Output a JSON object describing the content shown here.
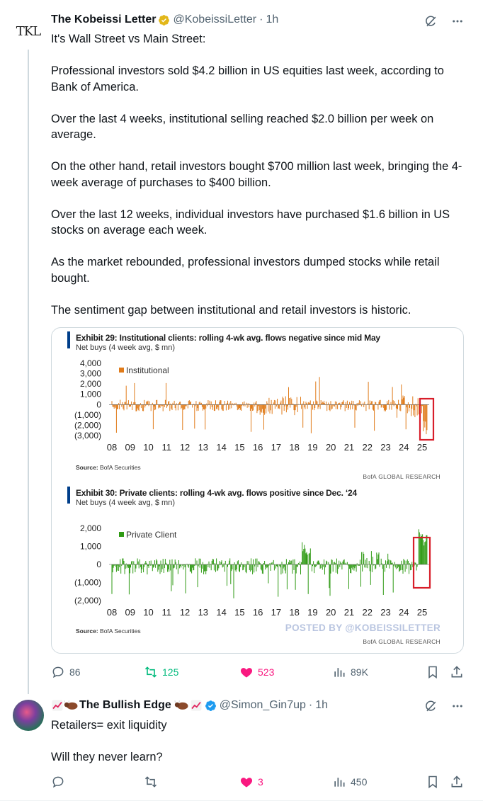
{
  "tweet1": {
    "author_name": "The Kobeissi Letter",
    "handle": "@KobeissiLetter",
    "time": "1h",
    "avatar_text": "TKL",
    "paragraphs": [
      "It's Wall Street vs Main Street:",
      "Professional investors sold $4.2 billion in US equities last week, according to Bank of America.",
      "Over the last 4 weeks, institutional selling reached $2.0 billion per week on average.",
      "On the other hand, retail investors bought $700 million last week, bringing the 4-week average of purchases to $400 billion.",
      "Over the last 12 weeks, individual investors have purchased $1.6 billion in US stocks on average each week.",
      "As the market rebounded, professional investors dumped stocks while retail bought.",
      "The sentiment gap between institutional and retail investors is historic."
    ],
    "stats": {
      "replies": "86",
      "reposts": "125",
      "likes": "523",
      "views": "89K"
    },
    "colors": {
      "repost_active": "#00ba7c",
      "like_active": "#f91880",
      "verified_gold": "#e2b719"
    }
  },
  "chart_data": [
    {
      "type": "bar",
      "title": "Exhibit 29: Institutional clients: rolling 4-wk avg. flows negative since mid May",
      "ylabel": "Net buys (4 week avg, $ mn)",
      "legend": "Institutional",
      "series_color": "#e07b1a",
      "x_ticks": [
        "08",
        "09",
        "10",
        "11",
        "12",
        "13",
        "14",
        "15",
        "16",
        "17",
        "18",
        "19",
        "20",
        "21",
        "22",
        "23",
        "24",
        "25"
      ],
      "y_ticks": [
        "4,000",
        "3,000",
        "2,000",
        "1,000",
        "0",
        "(1,000)",
        "(2,000)",
        "(3,000)"
      ],
      "ylim": [
        -3000,
        4000
      ],
      "source_label": "Source:",
      "source": "BofA Securities",
      "credit": "BofA GLOBAL RESEARCH",
      "highlight": "2025"
    },
    {
      "type": "bar",
      "title": "Exhibit 30: Private clients: rolling 4-wk avg. flows positive since Dec. ‘24",
      "ylabel": "Net buys (4 week avg, $ mn)",
      "legend": "Private Client",
      "series_color": "#2e9a13",
      "x_ticks": [
        "08",
        "09",
        "10",
        "11",
        "12",
        "13",
        "14",
        "15",
        "16",
        "17",
        "18",
        "19",
        "20",
        "21",
        "22",
        "23",
        "24",
        "25"
      ],
      "y_ticks": [
        "2,000",
        "1,000",
        "0",
        "(1,000)",
        "(2,000)"
      ],
      "ylim": [
        -2000,
        2000
      ],
      "source_label": "Source:",
      "source": "BofA Securities",
      "credit": "BofA GLOBAL RESEARCH",
      "watermark": "POSTED BY @KOBEISSILETTER",
      "highlight": "2025"
    }
  ],
  "tweet2": {
    "author_name": "The Bullish Edge",
    "handle": "@Simon_Gin7up",
    "time": "1h",
    "paragraphs": [
      "Retailers= exit liquidity",
      "Will they never learn?"
    ],
    "stats": {
      "replies": "",
      "reposts": "",
      "likes": "3",
      "views": "450"
    },
    "colors": {
      "verified_blue": "#1d9bf0"
    }
  }
}
